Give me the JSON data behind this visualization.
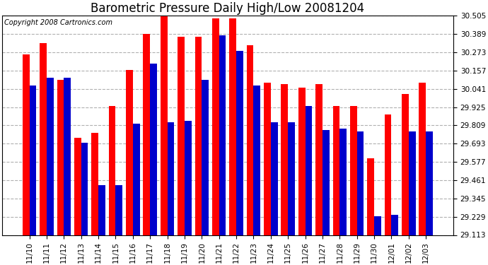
{
  "title": "Barometric Pressure Daily High/Low 20081204",
  "copyright": "Copyright 2008 Cartronics.com",
  "categories": [
    "11/10",
    "11/11",
    "11/12",
    "11/13",
    "11/14",
    "11/15",
    "11/16",
    "11/17",
    "11/18",
    "11/19",
    "11/20",
    "11/21",
    "11/22",
    "11/23",
    "11/24",
    "11/25",
    "11/26",
    "11/27",
    "11/28",
    "11/29",
    "11/30",
    "12/01",
    "12/02",
    "12/03"
  ],
  "high_values": [
    30.26,
    30.33,
    30.1,
    29.73,
    29.76,
    29.93,
    30.16,
    30.39,
    30.5,
    30.37,
    30.37,
    30.49,
    30.49,
    30.32,
    30.08,
    30.07,
    30.05,
    30.07,
    29.93,
    29.93,
    29.6,
    29.88,
    30.01,
    30.08
  ],
  "low_values": [
    30.06,
    30.11,
    30.11,
    29.7,
    29.43,
    29.43,
    29.82,
    30.2,
    29.83,
    29.84,
    30.1,
    30.38,
    30.28,
    30.06,
    29.83,
    29.83,
    29.93,
    29.78,
    29.79,
    29.77,
    29.23,
    29.24,
    29.77,
    29.77
  ],
  "high_color": "#ff0000",
  "low_color": "#0000cc",
  "background_color": "#ffffff",
  "grid_color": "#b0b0b0",
  "ylim_min": 29.113,
  "ylim_max": 30.505,
  "yticks": [
    29.113,
    29.229,
    29.345,
    29.461,
    29.577,
    29.693,
    29.809,
    29.925,
    30.041,
    30.157,
    30.273,
    30.389,
    30.505
  ],
  "title_fontsize": 12,
  "tick_fontsize": 7.5,
  "copyright_fontsize": 7,
  "bar_width": 0.4,
  "fig_width": 6.9,
  "fig_height": 3.75
}
